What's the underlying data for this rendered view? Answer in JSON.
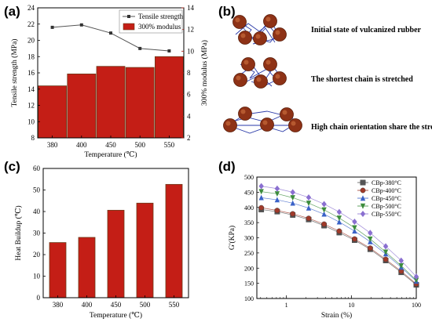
{
  "panels": {
    "a": {
      "letter": "(a)"
    },
    "b": {
      "letter": "(b)",
      "captions": [
        "Initial state of vulcanized rubber",
        "The shortest chain is stretched",
        "High chain orientation share the stress"
      ]
    },
    "c": {
      "letter": "(c)"
    },
    "d": {
      "letter": "(d)"
    }
  },
  "chart_data": [
    {
      "panel": "a",
      "type": "bar",
      "categories": [
        "380",
        "400",
        "450",
        "500",
        "550"
      ],
      "xlabel": "Temperature (℃)",
      "ylabel": "Tensile strength (MPa)",
      "ylabel_right": "300% modulus (MPa)",
      "ylim": [
        8,
        24
      ],
      "yticks": [
        8,
        10,
        12,
        14,
        16,
        18,
        20,
        22,
        24
      ],
      "ylim_right": [
        2,
        14
      ],
      "yticks_right": [
        2,
        4,
        6,
        8,
        10,
        12,
        14
      ],
      "series": [
        {
          "name": "Tensile strength",
          "type": "line",
          "axis": "left",
          "color": "#555555",
          "values": [
            21.6,
            21.9,
            20.9,
            19.0,
            18.7
          ]
        },
        {
          "name": "300% modulus",
          "type": "bar",
          "axis": "right",
          "color": "#c41e16",
          "values": [
            6.8,
            7.9,
            8.6,
            8.5,
            9.5
          ]
        }
      ],
      "legend": "top-right"
    },
    {
      "panel": "c",
      "type": "bar",
      "categories": [
        "380",
        "400",
        "450",
        "500",
        "550"
      ],
      "xlabel": "Temperature (℃)",
      "ylabel": "Heat Buildup (℃)",
      "ylim": [
        0,
        60
      ],
      "yticks": [
        0,
        10,
        20,
        30,
        40,
        50,
        60
      ],
      "values": [
        25.6,
        28.0,
        40.6,
        43.9,
        52.6
      ],
      "color": "#c41e16"
    },
    {
      "panel": "d",
      "type": "line",
      "xlabel": "Strain (%)",
      "ylabel": "G'(KPa)",
      "xscale": "log",
      "xlim": [
        0.35,
        100
      ],
      "xticks": [
        1,
        10,
        100
      ],
      "xtick_labels": [
        "1",
        "10",
        "100"
      ],
      "ylim": [
        100,
        500
      ],
      "yticks": [
        100,
        150,
        200,
        250,
        300,
        350,
        400,
        450,
        500
      ],
      "x": [
        0.41,
        0.72,
        1.25,
        2.2,
        3.8,
        6.5,
        11.2,
        19.5,
        33.8,
        58.5,
        100
      ],
      "series": [
        {
          "name": "CBp-380°C",
          "marker": "square",
          "color": "#555555",
          "values": [
            393,
            386,
            375,
            360,
            340,
            317,
            292,
            262,
            225,
            186,
            145
          ]
        },
        {
          "name": "CBp-400°C",
          "marker": "circle",
          "color": "#a03a2a",
          "values": [
            399,
            390,
            379,
            364,
            345,
            322,
            296,
            266,
            229,
            190,
            148
          ]
        },
        {
          "name": "CBp-450°C",
          "marker": "triangle-up",
          "color": "#3a62c8",
          "values": [
            432,
            425,
            414,
            398,
            378,
            352,
            322,
            287,
            247,
            203,
            157
          ]
        },
        {
          "name": "CBp-500°C",
          "marker": "triangle-down",
          "color": "#3c8c3c",
          "values": [
            452,
            445,
            432,
            414,
            392,
            365,
            333,
            296,
            253,
            208,
            160
          ]
        },
        {
          "name": "CBp-550°C",
          "marker": "diamond",
          "color": "#8a6fd0",
          "values": [
            470,
            462,
            450,
            433,
            411,
            385,
            353,
            316,
            272,
            225,
            172
          ]
        }
      ],
      "legend": "top-right"
    }
  ]
}
